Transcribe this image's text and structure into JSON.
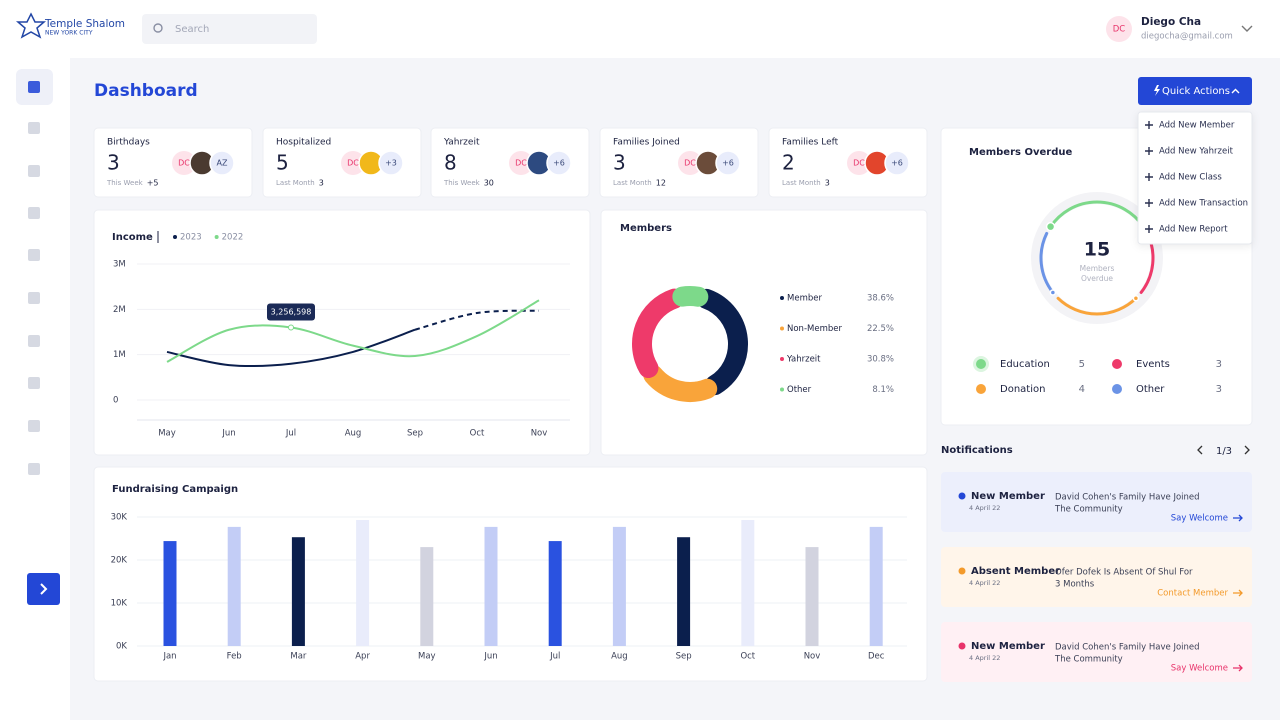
{
  "header": {
    "logo_title": "Temple Shalom",
    "logo_subtitle": "NEW YORK CITY",
    "search_placeholder": "Search",
    "user": {
      "initials": "DC",
      "name": "Diego Cha",
      "email": "diegocha@gmail.com"
    }
  },
  "page_title": "Dashboard",
  "quick_actions": {
    "label": "Quick Actions",
    "items": [
      "Add New Member",
      "Add New Yahrzeit",
      "Add New Class",
      "Add New Transaction",
      "Add New Report"
    ]
  },
  "stats": [
    {
      "label": "Birthdays",
      "value": 3,
      "period": "This Week",
      "change": "+5",
      "initials": "DC",
      "more": "AZ"
    },
    {
      "label": "Hospitalized",
      "value": 5,
      "period": "Last Month",
      "change": 3,
      "initials": "DC",
      "more": "+3"
    },
    {
      "label": "Yahrzeit",
      "value": 8,
      "period": "This Week",
      "change": 30,
      "initials": "DC",
      "more": "+6"
    },
    {
      "label": "Families Joined",
      "value": 3,
      "period": "Last Month",
      "change": 12,
      "initials": "DC",
      "more": "+6"
    },
    {
      "label": "Families Left",
      "value": 2,
      "period": "Last Month",
      "change": 3,
      "initials": "DC",
      "more": "+6"
    }
  ],
  "chart_data": [
    {
      "type": "line",
      "title": "Income",
      "categories": [
        "May",
        "Jun",
        "Jul",
        "Aug",
        "Sep",
        "Oct",
        "Nov"
      ],
      "series": [
        {
          "name": "2023",
          "color": "#0b1f4d",
          "values": [
            1060000,
            770000,
            800000,
            1060000,
            1550000,
            1920000,
            1970000
          ],
          "dashed_from_index": 4
        },
        {
          "name": "2022",
          "color": "#7dd98a",
          "values": [
            840000,
            1550000,
            1600000,
            1200000,
            970000,
            1410000,
            2200000
          ]
        }
      ],
      "ylim": [
        0,
        3000000
      ],
      "yticks": [
        0,
        {
          "value": 1000000,
          "label": "1M"
        },
        {
          "value": 2000000,
          "label": "2M"
        },
        {
          "value": 3000000,
          "label": "3M"
        }
      ],
      "grid": true,
      "annotation": "3,256,598"
    },
    {
      "type": "donut",
      "title": "Members",
      "categories": [
        "Member",
        "Non-Member",
        "Yahrzeit",
        "Other"
      ],
      "values": [
        38.6,
        22.5,
        30.8,
        8.1
      ],
      "value_labels": [
        "38.6%",
        "22.5%",
        "30.8%",
        "8.1%"
      ],
      "colors": [
        "#0b1f4d",
        "#f9a43a",
        "#ee3a6a",
        "#7dd98a"
      ]
    },
    {
      "type": "bar",
      "title": "Fundraising Campaign",
      "categories": [
        "Jan",
        "Feb",
        "Mar",
        "Apr",
        "May",
        "Jun",
        "Jul",
        "Aug",
        "Sep",
        "Oct",
        "Nov",
        "Dec"
      ],
      "values": [
        24400,
        27700,
        25300,
        29300,
        23000,
        27700,
        24400,
        27700,
        25300,
        29300,
        23000,
        27700
      ],
      "colors": [
        "#2a52e0",
        "#c3cdf6",
        "#0b1f4d",
        "#e9ecfb",
        "#d2d3df",
        "#c3cdf6",
        "#2a52e0",
        "#c3cdf6",
        "#0b1f4d",
        "#e9ecfb",
        "#d2d3df",
        "#c3cdf6"
      ],
      "ylim": [
        0,
        30000
      ],
      "yticks": [
        {
          "value": 0,
          "label": "0K"
        },
        {
          "value": 10000,
          "label": "10K"
        },
        {
          "value": 20000,
          "label": "20K"
        },
        {
          "value": 30000,
          "label": "30K"
        }
      ],
      "grid": true
    },
    {
      "type": "gauge",
      "title": "Members Overdue",
      "total": 15,
      "center_label": [
        "Members",
        "Overdue"
      ],
      "categories": [
        "Education",
        "Events",
        "Donation",
        "Other"
      ],
      "values": [
        5,
        3,
        4,
        3
      ],
      "colors": [
        "#7dd98a",
        "#ee3a6a",
        "#f9a43a",
        "#6b93e6"
      ]
    }
  ],
  "notifications": {
    "title": "Notifications",
    "page": "1/3",
    "items": [
      {
        "title": "New Member",
        "date": "4 April 22",
        "message": [
          "David Cohen's Family Have Joined",
          "The Community"
        ],
        "action": "Say Welcome",
        "color": "#2347d6",
        "background": "#eceffc"
      },
      {
        "title": "Absent Member",
        "date": "4 April 22",
        "message": [
          "Ofer Dofek Is Absent Of Shul For",
          "3 Months"
        ],
        "action": "Contact Member",
        "color": "#f39a2b",
        "background": "#fff5ea"
      },
      {
        "title": "New Member",
        "date": "4 April 22",
        "message": [
          "David Cohen's Family Have Joined",
          "The Community"
        ],
        "action": "Say Welcome",
        "color": "#e8336a",
        "background": "#fff0f4"
      }
    ]
  }
}
